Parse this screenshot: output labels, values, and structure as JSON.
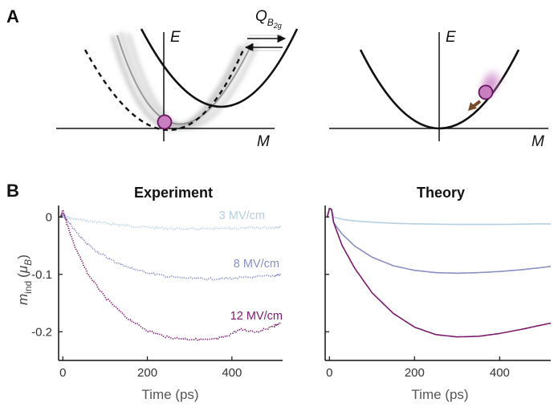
{
  "panel_a": {
    "letter": "A",
    "left": {
      "y_axis": "E",
      "x_axis": "M",
      "phonon_label_main": "Q",
      "phonon_label_sub": "B",
      "phonon_label_subsub": "2g"
    },
    "right": {
      "y_axis": "E",
      "x_axis": "M"
    }
  },
  "panel_b": {
    "letter": "B",
    "ylabel_main": "m",
    "ylabel_sub": "ind",
    "ylabel_unit_open": "(",
    "ylabel_unit": "μ",
    "ylabel_unit_sub": "B",
    "ylabel_unit_close": ")"
  },
  "colors": {
    "low": "#b5cfe0",
    "mid": "#8a8fc4",
    "high": "#7a1a6c",
    "marble": "#c77fc0",
    "arrow": "#7a4a2a"
  },
  "chart_data": [
    {
      "type": "line",
      "title": "Experiment",
      "xlabel": "Time (ps)",
      "ylabel": "m_ind (μB)",
      "xlim": [
        -10,
        520
      ],
      "ylim": [
        -0.25,
        0.02
      ],
      "xticks": [
        0,
        200,
        400
      ],
      "yticks": [
        0,
        -0.1,
        -0.2
      ],
      "ytick_labels": [
        "0",
        "-0.1",
        "-0.2"
      ],
      "grid": false,
      "annotations": [
        "3 MV/cm",
        "8 MV/cm",
        "12 MV/cm"
      ],
      "series": [
        {
          "name": "3 MV/cm",
          "x": [
            -5,
            0,
            20,
            50,
            100,
            150,
            200,
            250,
            300,
            350,
            400,
            450,
            500,
            515
          ],
          "y": [
            0,
            0,
            -0.002,
            -0.006,
            -0.011,
            -0.015,
            -0.018,
            -0.02,
            -0.021,
            -0.021,
            -0.02,
            -0.019,
            -0.018,
            -0.018
          ]
        },
        {
          "name": "8 MV/cm",
          "x": [
            -5,
            0,
            10,
            30,
            50,
            80,
            120,
            160,
            200,
            250,
            300,
            350,
            400,
            450,
            500,
            515
          ],
          "y": [
            0,
            0.005,
            -0.005,
            -0.025,
            -0.042,
            -0.06,
            -0.077,
            -0.089,
            -0.097,
            -0.104,
            -0.107,
            -0.108,
            -0.107,
            -0.105,
            -0.102,
            -0.1
          ]
        },
        {
          "name": "12 MV/cm",
          "x": [
            -5,
            0,
            10,
            30,
            60,
            100,
            150,
            200,
            250,
            300,
            350,
            380,
            420,
            460,
            500,
            515
          ],
          "y": [
            0,
            0.012,
            -0.012,
            -0.055,
            -0.1,
            -0.14,
            -0.175,
            -0.198,
            -0.21,
            -0.213,
            -0.214,
            -0.21,
            -0.196,
            -0.2,
            -0.19,
            -0.185
          ]
        }
      ]
    },
    {
      "type": "line",
      "title": "Theory",
      "xlabel": "Time (ps)",
      "xlim": [
        -10,
        520
      ],
      "ylim": [
        -0.25,
        0.02
      ],
      "xticks": [
        0,
        200,
        400
      ],
      "grid": false,
      "series": [
        {
          "x": [
            -5,
            0,
            5,
            10,
            30,
            60,
            100,
            150,
            200,
            300,
            400,
            500,
            520
          ],
          "y": [
            0,
            0.015,
            0.013,
            0,
            -0.004,
            -0.007,
            -0.009,
            -0.011,
            -0.012,
            -0.013,
            -0.013,
            -0.012,
            -0.012
          ]
        },
        {
          "x": [
            -5,
            0,
            5,
            10,
            30,
            60,
            100,
            150,
            200,
            250,
            300,
            350,
            400,
            450,
            500,
            520
          ],
          "y": [
            0,
            0.015,
            0.013,
            -0.01,
            -0.03,
            -0.051,
            -0.07,
            -0.085,
            -0.093,
            -0.097,
            -0.098,
            -0.097,
            -0.095,
            -0.092,
            -0.088,
            -0.086
          ]
        },
        {
          "x": [
            -5,
            0,
            5,
            10,
            30,
            60,
            100,
            150,
            200,
            250,
            300,
            350,
            400,
            450,
            500,
            520
          ],
          "y": [
            0,
            0.015,
            0.013,
            -0.01,
            -0.05,
            -0.09,
            -0.132,
            -0.168,
            -0.192,
            -0.205,
            -0.209,
            -0.208,
            -0.203,
            -0.196,
            -0.188,
            -0.185
          ]
        }
      ]
    }
  ]
}
